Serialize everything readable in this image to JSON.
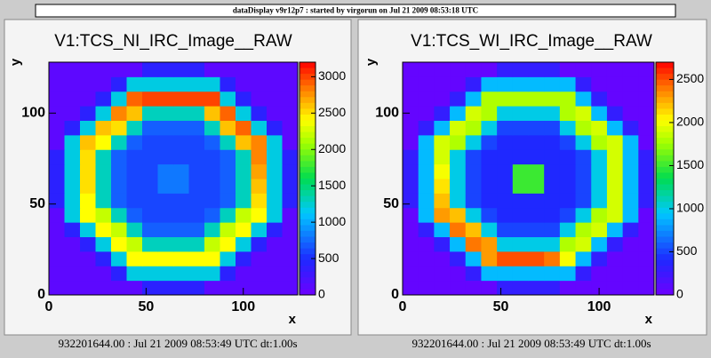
{
  "window_title": "dataDisplay v9r12p7 : started by virgorun on Jul 21 2009 08:53:18 UTC",
  "chart_data": [
    {
      "type": "heatmap",
      "title": "V1:TCS_NI_IRC_Image__RAW",
      "x_label": "x",
      "y_label": "y",
      "xlim": [
        0,
        128
      ],
      "ylim": [
        0,
        128
      ],
      "xticks": [
        0,
        50,
        100
      ],
      "yticks": [
        0,
        50,
        100
      ],
      "xbins": [
        0,
        8,
        16,
        24,
        32,
        40,
        48,
        56,
        64,
        72,
        80,
        88,
        96,
        104,
        112,
        120,
        128
      ],
      "ybins": [
        0,
        8,
        16,
        24,
        32,
        40,
        48,
        56,
        64,
        72,
        80,
        88,
        96,
        104,
        112,
        120,
        128
      ],
      "zlim": [
        0,
        3200
      ],
      "zticks": [
        0,
        500,
        1000,
        1500,
        2000,
        2500,
        3000
      ],
      "values": [
        [
          100,
          100,
          100,
          100,
          100,
          100,
          400,
          400,
          400,
          400,
          100,
          100,
          100,
          100,
          100,
          100
        ],
        [
          100,
          100,
          100,
          100,
          400,
          1200,
          1200,
          1200,
          1200,
          1200,
          1200,
          400,
          100,
          100,
          100,
          100
        ],
        [
          100,
          100,
          100,
          400,
          1200,
          2400,
          2400,
          2400,
          2400,
          2400,
          2400,
          1200,
          400,
          100,
          100,
          100
        ],
        [
          100,
          100,
          400,
          1200,
          2400,
          2200,
          1300,
          1300,
          1300,
          1300,
          2200,
          2400,
          1200,
          400,
          100,
          100
        ],
        [
          100,
          400,
          1200,
          2400,
          2200,
          1300,
          700,
          700,
          700,
          700,
          1300,
          2200,
          2400,
          1200,
          400,
          100
        ],
        [
          100,
          1200,
          2400,
          2200,
          1300,
          700,
          600,
          600,
          600,
          600,
          700,
          1300,
          2200,
          2400,
          1200,
          100
        ],
        [
          400,
          1200,
          2400,
          1300,
          700,
          600,
          600,
          600,
          600,
          600,
          600,
          700,
          1300,
          2500,
          1200,
          400
        ],
        [
          400,
          1200,
          2500,
          1300,
          700,
          600,
          600,
          800,
          800,
          600,
          600,
          700,
          1300,
          2600,
          1200,
          400
        ],
        [
          400,
          1200,
          2500,
          1300,
          700,
          600,
          600,
          800,
          800,
          600,
          600,
          700,
          1300,
          2700,
          1200,
          400
        ],
        [
          400,
          1200,
          2500,
          1300,
          700,
          600,
          600,
          600,
          600,
          600,
          600,
          700,
          1300,
          2800,
          1200,
          400
        ],
        [
          100,
          1200,
          2600,
          2400,
          1300,
          700,
          600,
          600,
          600,
          600,
          700,
          1300,
          2600,
          2800,
          1200,
          100
        ],
        [
          100,
          400,
          1200,
          2600,
          2500,
          1300,
          700,
          700,
          700,
          700,
          1300,
          2600,
          2900,
          1200,
          400,
          100
        ],
        [
          100,
          100,
          400,
          1200,
          2800,
          2600,
          1300,
          1300,
          1300,
          1300,
          2600,
          2900,
          1200,
          400,
          100,
          100
        ],
        [
          100,
          100,
          100,
          400,
          1200,
          2900,
          3000,
          3000,
          3000,
          3000,
          3000,
          1200,
          400,
          100,
          100,
          100
        ],
        [
          100,
          100,
          100,
          100,
          400,
          1200,
          1200,
          1200,
          1200,
          1200,
          1200,
          400,
          100,
          100,
          100,
          100
        ],
        [
          100,
          100,
          100,
          100,
          100,
          100,
          400,
          400,
          400,
          400,
          100,
          100,
          100,
          100,
          100,
          100
        ]
      ],
      "footer": "932201644.00 : Jul 21 2009 08:53:49 UTC dt:1.00s"
    },
    {
      "type": "heatmap",
      "title": "V1:TCS_WI_IRC_Image__RAW",
      "x_label": "x",
      "y_label": "y",
      "xlim": [
        0,
        128
      ],
      "ylim": [
        0,
        128
      ],
      "xticks": [
        0,
        50,
        100
      ],
      "yticks": [
        0,
        50,
        100
      ],
      "xbins": [
        0,
        8,
        16,
        24,
        32,
        40,
        48,
        56,
        64,
        72,
        80,
        88,
        96,
        104,
        112,
        120,
        128
      ],
      "ybins": [
        0,
        8,
        16,
        24,
        32,
        40,
        48,
        56,
        64,
        72,
        80,
        88,
        96,
        104,
        112,
        120,
        128
      ],
      "zlim": [
        0,
        2700
      ],
      "zticks": [
        0,
        500,
        1000,
        1500,
        2000,
        2500
      ],
      "values": [
        [
          50,
          50,
          50,
          50,
          50,
          50,
          300,
          300,
          300,
          300,
          50,
          50,
          50,
          50,
          50,
          50
        ],
        [
          50,
          50,
          50,
          50,
          300,
          900,
          900,
          900,
          900,
          900,
          900,
          300,
          50,
          50,
          50,
          50
        ],
        [
          50,
          50,
          50,
          300,
          900,
          2300,
          2500,
          2500,
          2500,
          2400,
          2000,
          900,
          300,
          50,
          50,
          50
        ],
        [
          50,
          50,
          300,
          900,
          2400,
          2300,
          1000,
          1000,
          1000,
          1000,
          1800,
          1900,
          900,
          300,
          50,
          50
        ],
        [
          50,
          300,
          900,
          2400,
          2200,
          1000,
          500,
          500,
          500,
          500,
          1000,
          1800,
          1900,
          900,
          300,
          50
        ],
        [
          50,
          900,
          2300,
          2200,
          1000,
          500,
          400,
          400,
          400,
          400,
          500,
          1000,
          1800,
          1900,
          900,
          50
        ],
        [
          300,
          900,
          2200,
          1000,
          500,
          400,
          400,
          400,
          400,
          400,
          400,
          500,
          1000,
          1900,
          900,
          300
        ],
        [
          300,
          900,
          2100,
          1000,
          500,
          400,
          400,
          1500,
          1500,
          400,
          400,
          500,
          1000,
          1900,
          900,
          300
        ],
        [
          300,
          900,
          2000,
          1000,
          500,
          400,
          400,
          1500,
          1500,
          400,
          400,
          500,
          1000,
          1900,
          900,
          300
        ],
        [
          300,
          900,
          1900,
          1000,
          500,
          400,
          400,
          400,
          400,
          400,
          400,
          500,
          1000,
          1900,
          900,
          300
        ],
        [
          50,
          900,
          1900,
          1800,
          1000,
          500,
          400,
          400,
          400,
          400,
          500,
          1000,
          1800,
          1900,
          900,
          50
        ],
        [
          50,
          300,
          900,
          1900,
          1800,
          1000,
          500,
          500,
          500,
          500,
          1000,
          1800,
          1900,
          900,
          300,
          50
        ],
        [
          50,
          50,
          300,
          900,
          1900,
          1800,
          1000,
          1000,
          1000,
          1000,
          1800,
          1900,
          900,
          300,
          50,
          50
        ],
        [
          50,
          50,
          50,
          300,
          900,
          1800,
          1800,
          1800,
          1800,
          1800,
          1800,
          900,
          300,
          50,
          50,
          50
        ],
        [
          50,
          50,
          50,
          50,
          300,
          900,
          900,
          900,
          900,
          900,
          900,
          300,
          50,
          50,
          50,
          50
        ],
        [
          50,
          50,
          50,
          50,
          50,
          50,
          300,
          300,
          300,
          300,
          50,
          50,
          50,
          50,
          50,
          50
        ]
      ],
      "footer": "932201644.00 : Jul 21 2009 08:53:49 UTC dt:1.00s"
    }
  ]
}
